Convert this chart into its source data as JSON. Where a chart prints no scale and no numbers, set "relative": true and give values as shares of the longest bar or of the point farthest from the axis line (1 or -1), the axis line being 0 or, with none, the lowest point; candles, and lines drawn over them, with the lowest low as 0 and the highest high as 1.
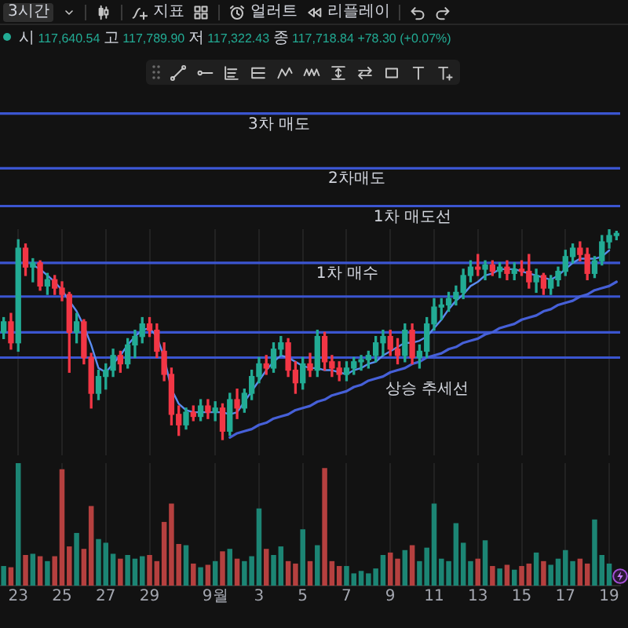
{
  "chart_data": [
    {
      "type": "candlestick",
      "relative": true,
      "categories": [
        null,
        null,
        null,
        null,
        null,
        null,
        null,
        null,
        null,
        null,
        null,
        null,
        null,
        null,
        null,
        null,
        null,
        null,
        null,
        null,
        null,
        null,
        null,
        null,
        null,
        null,
        null,
        null,
        null,
        null,
        null,
        null,
        null,
        null,
        null,
        null,
        null,
        null,
        null,
        null,
        null,
        null,
        null,
        null,
        null,
        null,
        null,
        null,
        null,
        null,
        null,
        null,
        null,
        null,
        null,
        null,
        null,
        null,
        null,
        null,
        null,
        null,
        null,
        null,
        null,
        null,
        null,
        null,
        null,
        null,
        null,
        null,
        null,
        null,
        null,
        null,
        null,
        null,
        null,
        null,
        null,
        null,
        null,
        null,
        null
      ],
      "ohlc": [
        [
          0.51,
          0.58,
          0.48,
          0.56
        ],
        [
          0.56,
          0.6,
          0.43,
          0.46
        ],
        [
          0.46,
          0.95,
          0.42,
          0.91
        ],
        [
          0.91,
          0.93,
          0.78,
          0.82
        ],
        [
          0.82,
          0.86,
          0.75,
          0.84
        ],
        [
          0.84,
          0.85,
          0.71,
          0.73
        ],
        [
          0.73,
          0.79,
          0.69,
          0.76
        ],
        [
          0.76,
          0.78,
          0.69,
          0.72
        ],
        [
          0.72,
          0.75,
          0.66,
          0.69
        ],
        [
          0.69,
          0.7,
          0.32,
          0.51
        ],
        [
          0.51,
          0.6,
          0.46,
          0.56
        ],
        [
          0.56,
          0.57,
          0.36,
          0.39
        ],
        [
          0.39,
          0.41,
          0.15,
          0.22
        ],
        [
          0.22,
          0.33,
          0.19,
          0.3
        ],
        [
          0.3,
          0.36,
          0.24,
          0.33
        ],
        [
          0.33,
          0.43,
          0.3,
          0.4
        ],
        [
          0.4,
          0.42,
          0.32,
          0.36
        ],
        [
          0.36,
          0.48,
          0.34,
          0.45
        ],
        [
          0.45,
          0.52,
          0.39,
          0.49
        ],
        [
          0.49,
          0.58,
          0.46,
          0.55
        ],
        [
          0.55,
          0.58,
          0.49,
          0.52
        ],
        [
          0.52,
          0.55,
          0.39,
          0.42
        ],
        [
          0.42,
          0.46,
          0.28,
          0.31
        ],
        [
          0.31,
          0.34,
          0.07,
          0.12
        ],
        [
          0.12,
          0.16,
          0.02,
          0.07
        ],
        [
          0.07,
          0.15,
          0.05,
          0.13
        ],
        [
          0.13,
          0.16,
          0.09,
          0.11
        ],
        [
          0.11,
          0.19,
          0.09,
          0.16
        ],
        [
          0.16,
          0.19,
          0.1,
          0.13
        ],
        [
          0.13,
          0.18,
          0.09,
          0.15
        ],
        [
          0.15,
          0.17,
          0,
          0.04
        ],
        [
          0.04,
          0.22,
          0.02,
          0.19
        ],
        [
          0.19,
          0.24,
          0.1,
          0.15
        ],
        [
          0.15,
          0.24,
          0.13,
          0.22
        ],
        [
          0.22,
          0.33,
          0.19,
          0.3
        ],
        [
          0.3,
          0.39,
          0.27,
          0.36
        ],
        [
          0.36,
          0.4,
          0.31,
          0.34
        ],
        [
          0.34,
          0.46,
          0.32,
          0.43
        ],
        [
          0.43,
          0.49,
          0.4,
          0.46
        ],
        [
          0.46,
          0.48,
          0.3,
          0.33
        ],
        [
          0.33,
          0.37,
          0.22,
          0.27
        ],
        [
          0.27,
          0.39,
          0.24,
          0.36
        ],
        [
          0.36,
          0.41,
          0.3,
          0.33
        ],
        [
          0.33,
          0.52,
          0.3,
          0.49
        ],
        [
          0.49,
          0.51,
          0.33,
          0.37
        ],
        [
          0.37,
          0.4,
          0.3,
          0.34
        ],
        [
          0.34,
          0.37,
          0.28,
          0.31
        ],
        [
          0.31,
          0.37,
          0.28,
          0.34
        ],
        [
          0.34,
          0.39,
          0.31,
          0.37
        ],
        [
          0.37,
          0.4,
          0.33,
          0.38
        ],
        [
          0.38,
          0.42,
          0.34,
          0.4
        ],
        [
          0.4,
          0.49,
          0.37,
          0.46
        ],
        [
          0.46,
          0.52,
          0.4,
          0.49
        ],
        [
          0.49,
          0.52,
          0.4,
          0.43
        ],
        [
          0.43,
          0.48,
          0.36,
          0.4
        ],
        [
          0.4,
          0.55,
          0.37,
          0.52
        ],
        [
          0.52,
          0.55,
          0.36,
          0.39
        ],
        [
          0.39,
          0.45,
          0.34,
          0.42
        ],
        [
          0.42,
          0.58,
          0.39,
          0.55
        ],
        [
          0.55,
          0.67,
          0.52,
          0.63
        ],
        [
          0.63,
          0.67,
          0.57,
          0.64
        ],
        [
          0.64,
          0.7,
          0.61,
          0.67
        ],
        [
          0.67,
          0.73,
          0.64,
          0.7
        ],
        [
          0.7,
          0.81,
          0.67,
          0.78
        ],
        [
          0.78,
          0.85,
          0.75,
          0.82
        ],
        [
          0.82,
          0.88,
          0.78,
          0.81
        ],
        [
          0.81,
          0.85,
          0.76,
          0.83
        ],
        [
          0.83,
          0.85,
          0.78,
          0.8
        ],
        [
          0.8,
          0.84,
          0.77,
          0.82
        ],
        [
          0.82,
          0.85,
          0.76,
          0.79
        ],
        [
          0.79,
          0.84,
          0.76,
          0.81
        ],
        [
          0.81,
          0.85,
          0.78,
          0.8
        ],
        [
          0.8,
          0.88,
          0.72,
          0.75
        ],
        [
          0.75,
          0.81,
          0.7,
          0.78
        ],
        [
          0.78,
          0.79,
          0.69,
          0.72
        ],
        [
          0.72,
          0.78,
          0.69,
          0.76
        ],
        [
          0.76,
          0.82,
          0.73,
          0.8
        ],
        [
          0.8,
          0.9,
          0.78,
          0.87
        ],
        [
          0.87,
          0.93,
          0.84,
          0.91
        ],
        [
          0.91,
          0.94,
          0.85,
          0.88
        ],
        [
          0.88,
          0.91,
          0.76,
          0.79
        ],
        [
          0.79,
          0.87,
          0.77,
          0.85
        ],
        [
          0.85,
          0.97,
          0.83,
          0.94
        ],
        [
          0.94,
          1,
          0.91,
          0.97
        ],
        [
          0.97,
          0.99,
          0.95,
          0.98
        ]
      ],
      "colors": [
        "#22ab94",
        "#f23645",
        "#22ab94",
        "#f23645",
        "#22ab94",
        "#f23645",
        "#22ab94",
        "#f23645",
        "#f23645",
        "#f23645",
        "#22ab94",
        "#f23645",
        "#f23645",
        "#22ab94",
        "#22ab94",
        "#22ab94",
        "#f23645",
        "#22ab94",
        "#22ab94",
        "#22ab94",
        "#f23645",
        "#f23645",
        "#f23645",
        "#f23645",
        "#f23645",
        "#22ab94",
        "#f23645",
        "#22ab94",
        "#f23645",
        "#22ab94",
        "#f23645",
        "#22ab94",
        "#f23645",
        "#22ab94",
        "#22ab94",
        "#22ab94",
        "#f23645",
        "#22ab94",
        "#22ab94",
        "#f23645",
        "#f23645",
        "#22ab94",
        "#f23645",
        "#22ab94",
        "#f23645",
        "#f23645",
        "#f23645",
        "#22ab94",
        "#22ab94",
        "#22ab94",
        "#22ab94",
        "#22ab94",
        "#22ab94",
        "#f23645",
        "#f23645",
        "#22ab94",
        "#f23645",
        "#22ab94",
        "#22ab94",
        "#22ab94",
        "#22ab94",
        "#22ab94",
        "#22ab94",
        "#22ab94",
        "#22ab94",
        "#f23645",
        "#22ab94",
        "#f23645",
        "#22ab94",
        "#f23645",
        "#22ab94",
        "#f23645",
        "#f23645",
        "#22ab94",
        "#f23645",
        "#22ab94",
        "#22ab94",
        "#22ab94",
        "#22ab94",
        "#f23645",
        "#f23645",
        "#22ab94",
        "#22ab94",
        "#22ab94",
        "#22ab94"
      ],
      "series": [
        {
          "type": "line",
          "color": "#5a8cf0",
          "values": [
            null,
            null,
            null,
            null,
            0.83,
            0.81,
            0.78,
            0.75,
            0.71,
            0.66,
            0.61,
            0.54,
            0.45,
            0.34,
            0.32,
            0.36,
            0.4,
            0.45,
            0.49,
            0.52,
            0.53,
            0.49,
            0.39,
            0.24,
            0.17,
            0.14,
            0.13,
            0.13,
            0.13,
            0.13,
            0.13,
            0.12,
            0.13,
            0.18,
            0.23,
            0.28,
            0.33,
            0.37,
            0.4,
            0.39,
            0.37,
            0.35,
            0.34,
            0.34,
            0.33,
            0.33,
            0.32,
            0.31,
            0.33,
            0.34,
            0.36,
            0.37,
            0.4,
            0.42,
            0.44,
            0.46,
            0.46,
            0.47,
            0.49,
            0.53,
            0.57,
            0.62,
            0.66,
            0.69,
            0.73,
            0.75,
            0.78,
            0.79,
            0.81,
            0.81,
            0.81,
            0.8,
            0.79,
            0.78,
            0.77,
            0.76,
            0.78,
            0.81,
            0.84,
            0.86,
            0.86,
            0.86,
            0.87,
            0.9,
            null
          ]
        },
        {
          "type": "line",
          "name": "상승 추세선",
          "color": "#4660d8",
          "values": [
            null,
            null,
            null,
            null,
            null,
            null,
            null,
            null,
            null,
            null,
            null,
            null,
            null,
            null,
            null,
            null,
            null,
            null,
            null,
            null,
            null,
            null,
            null,
            null,
            null,
            null,
            null,
            null,
            null,
            null,
            null,
            0.01,
            0.03,
            0.04,
            0.05,
            0.07,
            0.08,
            0.1,
            0.11,
            0.12,
            0.14,
            0.15,
            0.16,
            0.18,
            0.19,
            0.21,
            0.22,
            0.23,
            0.25,
            0.26,
            0.28,
            0.29,
            0.3,
            0.32,
            0.33,
            0.34,
            0.36,
            0.37,
            0.39,
            0.4,
            0.41,
            0.43,
            0.44,
            0.46,
            0.47,
            0.48,
            0.5,
            0.51,
            0.53,
            0.54,
            0.55,
            0.57,
            0.58,
            0.59,
            0.61,
            0.62,
            0.64,
            0.65,
            0.66,
            0.68,
            0.69,
            0.71,
            0.72,
            0.73,
            0.75
          ]
        }
      ],
      "ref_lines": [
        {
          "axis": "y",
          "value": 1.55,
          "label": "3차 매도",
          "color": "#3b55d0"
        },
        {
          "axis": "y",
          "value": 1.29,
          "label": "2차매도",
          "color": "#3b55d0"
        },
        {
          "axis": "y",
          "value": 1.11,
          "label": "1차 매도선",
          "color": "#3b55d0"
        },
        {
          "axis": "y",
          "value": 0.84,
          "label": "1차 매수",
          "color": "#3b55d0"
        },
        {
          "axis": "y",
          "value": 0.68,
          "color": "#3b55d0"
        },
        {
          "axis": "y",
          "value": 0.51,
          "color": "#3b55d0"
        },
        {
          "axis": "y",
          "value": 0.39,
          "color": "#3b55d0"
        }
      ],
      "grid": "x",
      "annotations": [
        "3시간",
        "지표",
        "얼러트",
        "리플레이",
        "시 117,640.54 고 117,789.90 저 117,322.43 종 117,718.84 +78.30 (+0.07%)"
      ]
    },
    {
      "type": "bar",
      "relative": true,
      "categories": [
        null,
        null,
        "23",
        null,
        null,
        null,
        null,
        null,
        "25",
        null,
        null,
        null,
        null,
        null,
        "27",
        null,
        null,
        null,
        null,
        null,
        "29",
        null,
        null,
        null,
        null,
        null,
        null,
        null,
        null,
        "9월",
        null,
        null,
        null,
        null,
        null,
        "3",
        null,
        null,
        null,
        null,
        null,
        "5",
        null,
        null,
        null,
        null,
        null,
        "7",
        null,
        null,
        null,
        null,
        null,
        "9",
        null,
        null,
        null,
        null,
        null,
        "11",
        null,
        null,
        null,
        null,
        null,
        "13",
        null,
        null,
        null,
        null,
        null,
        "15",
        null,
        null,
        null,
        null,
        null,
        "17",
        null,
        null,
        null,
        null,
        null,
        "19",
        null
      ],
      "values": [
        0.16,
        0.15,
        1,
        0.25,
        0.26,
        0.24,
        0.2,
        0.24,
        0.95,
        0.32,
        0.43,
        0.3,
        0.65,
        0.38,
        0.35,
        0.26,
        0.22,
        0.25,
        0.22,
        0.24,
        0.25,
        0.2,
        0.52,
        0.67,
        0.34,
        0.33,
        0.18,
        0.15,
        0.17,
        0.2,
        0.28,
        0.3,
        0.22,
        0.2,
        0.24,
        0.63,
        0.3,
        0.25,
        0.32,
        0.2,
        0.18,
        0.46,
        0.2,
        0.33,
        0.96,
        0.2,
        0.16,
        0.16,
        0.1,
        0.12,
        0.1,
        0.14,
        0.25,
        0.27,
        0.22,
        0.29,
        0.33,
        0.2,
        0.31,
        0.67,
        0.22,
        0.2,
        0.51,
        0.35,
        0.2,
        0.22,
        0.37,
        0.16,
        0.14,
        0.17,
        0.13,
        0.16,
        0.18,
        0.27,
        0.2,
        0.17,
        0.22,
        0.29,
        0.2,
        0.22,
        0.18,
        0.54,
        0.25,
        0.18,
        null
      ],
      "colors": [
        "#1c8574",
        "#b5403f",
        "#1c8574",
        "#b5403f",
        "#1c8574",
        "#b5403f",
        "#1c8574",
        "#b5403f",
        "#b5403f",
        "#b5403f",
        "#1c8574",
        "#b5403f",
        "#b5403f",
        "#1c8574",
        "#1c8574",
        "#1c8574",
        "#b5403f",
        "#1c8574",
        "#1c8574",
        "#1c8574",
        "#b5403f",
        "#b5403f",
        "#b5403f",
        "#b5403f",
        "#b5403f",
        "#1c8574",
        "#b5403f",
        "#1c8574",
        "#b5403f",
        "#1c8574",
        "#b5403f",
        "#1c8574",
        "#b5403f",
        "#1c8574",
        "#1c8574",
        "#1c8574",
        "#b5403f",
        "#1c8574",
        "#1c8574",
        "#b5403f",
        "#b5403f",
        "#1c8574",
        "#b5403f",
        "#1c8574",
        "#b5403f",
        "#b5403f",
        "#b5403f",
        "#1c8574",
        "#1c8574",
        "#1c8574",
        "#1c8574",
        "#1c8574",
        "#1c8574",
        "#b5403f",
        "#b5403f",
        "#1c8574",
        "#b5403f",
        "#1c8574",
        "#1c8574",
        "#1c8574",
        "#1c8574",
        "#1c8574",
        "#1c8574",
        "#1c8574",
        "#1c8574",
        "#b5403f",
        "#1c8574",
        "#b5403f",
        "#1c8574",
        "#b5403f",
        "#1c8574",
        "#b5403f",
        "#b5403f",
        "#1c8574",
        "#b5403f",
        "#1c8574",
        "#1c8574",
        "#1c8574",
        "#1c8574",
        "#b5403f",
        "#b5403f",
        "#1c8574",
        "#1c8574",
        "#1c8574",
        "#1c8574"
      ],
      "grid": "x"
    }
  ]
}
